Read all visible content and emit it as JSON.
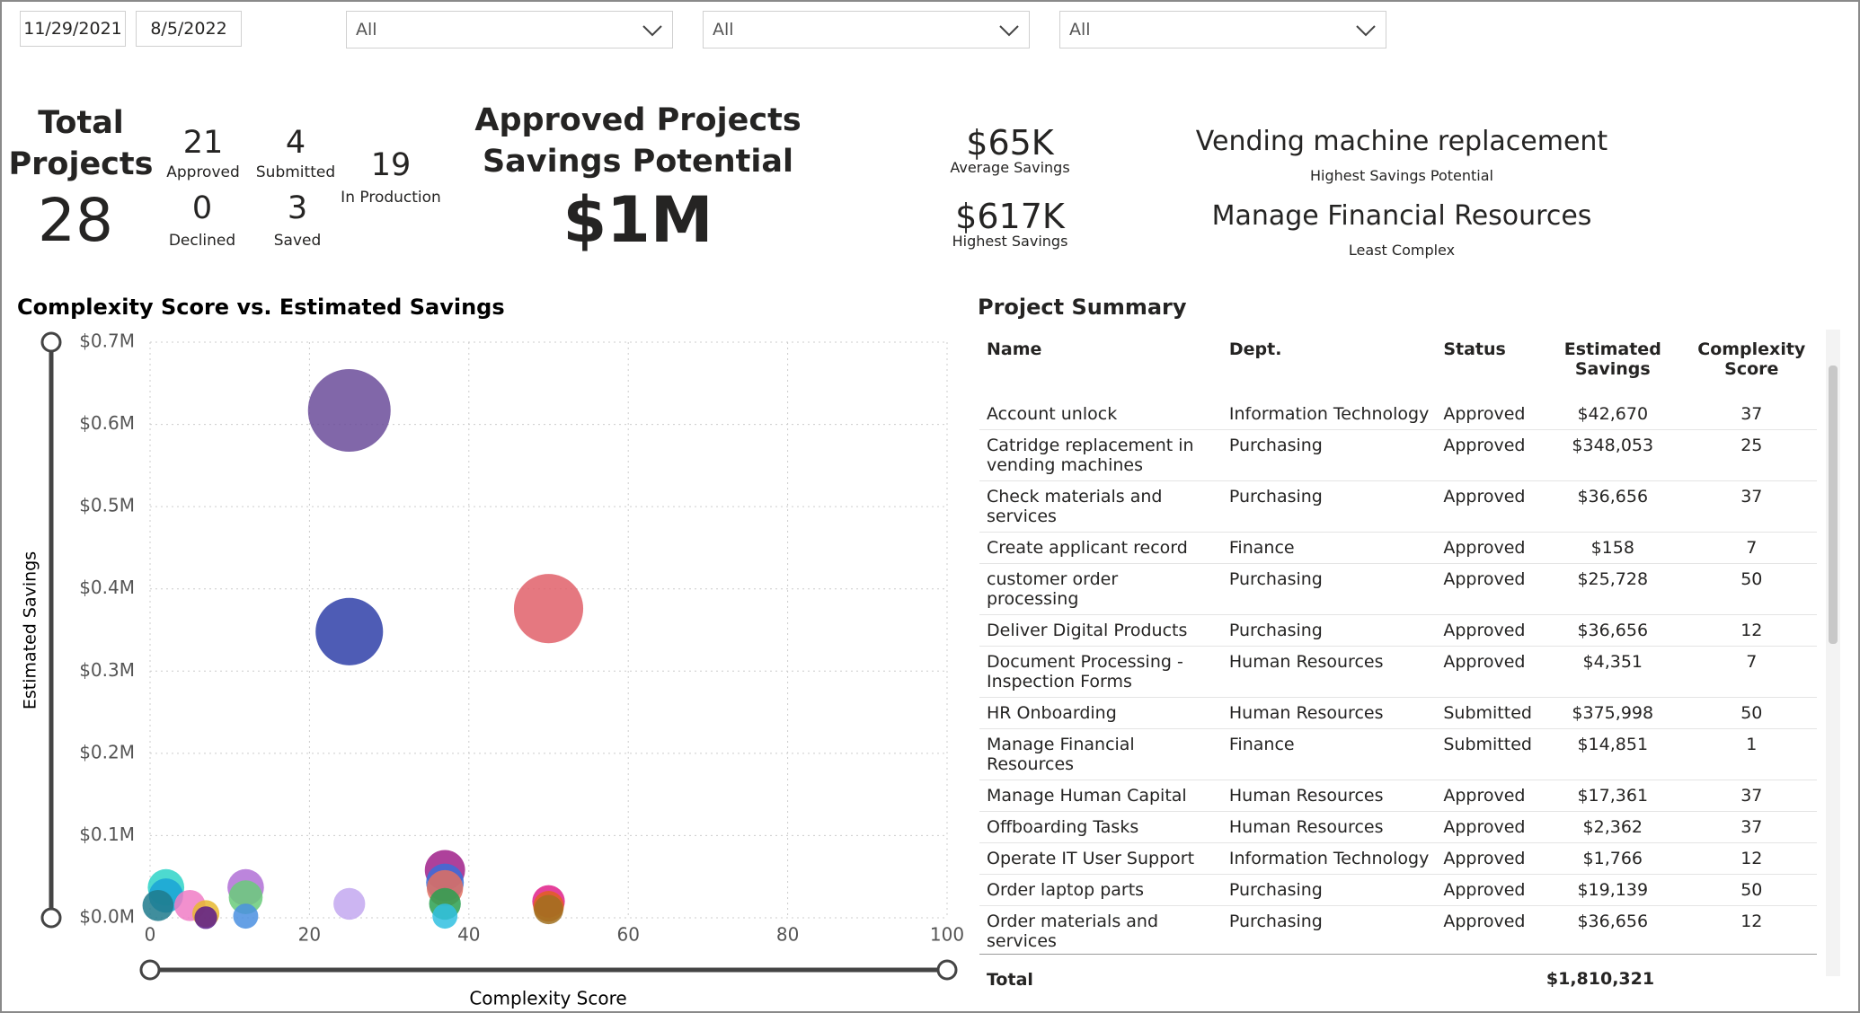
{
  "filters": {
    "start_date": "11/29/2021",
    "end_date": "8/5/2022",
    "dropdowns": [
      "All",
      "All",
      "All"
    ]
  },
  "kpis": {
    "total_label": "Total Projects",
    "total_value": "28",
    "approved": {
      "value": "21",
      "label": "Approved"
    },
    "submitted": {
      "value": "4",
      "label": "Submitted"
    },
    "declined": {
      "value": "0",
      "label": "Declined"
    },
    "saved": {
      "value": "3",
      "label": "Saved"
    },
    "in_production": {
      "value": "19",
      "label": "In Production"
    },
    "savings_title_1": "Approved Projects",
    "savings_title_2": "Savings Potential",
    "savings_value": "$1M",
    "average": {
      "value": "$65K",
      "label": "Average Savings"
    },
    "highest": {
      "value": "$617K",
      "label": "Highest Savings"
    },
    "top_project": {
      "value": "Vending machine replacement",
      "label": "Highest Savings Potential"
    },
    "least_complex": {
      "value": "Manage Financial Resources",
      "label": "Least Complex"
    }
  },
  "chart_data": {
    "type": "scatter",
    "title": "Complexity Score vs. Estimated Savings",
    "x_label": "Complexity Score",
    "y_label": "Estimated Savings",
    "x": [
      25,
      25,
      50,
      2,
      2,
      1,
      5,
      7,
      7,
      12,
      12,
      12,
      25,
      37,
      37,
      37,
      37,
      37,
      50,
      50,
      50
    ],
    "values": [
      0.617,
      0.348,
      0.376,
      0.037,
      0.027,
      0.015,
      0.015,
      0.005,
      0.0002,
      0.037,
      0.025,
      0.002,
      0.017,
      0.058,
      0.043,
      0.036,
      0.017,
      0.002,
      0.02,
      0.014,
      0.01
    ],
    "colors": [
      "#6b4c9a",
      "#2f3fa8",
      "#e0606a",
      "#2ed3c8",
      "#1aa3d6",
      "#1f7a8c",
      "#f07cc6",
      "#e8b830",
      "#5a1a8a",
      "#b070d6",
      "#6acb7a",
      "#4a8fe0",
      "#c3a8f0",
      "#a0208a",
      "#3b6ed8",
      "#e07060",
      "#2aa050",
      "#30c0e0",
      "#e0208a",
      "#e06020",
      "#a07020"
    ],
    "xlim": [
      0,
      100
    ],
    "xticks": [
      0,
      20,
      40,
      60,
      80,
      100
    ],
    "ylim": [
      0,
      0.7
    ],
    "yticks": [
      {
        "value": 0,
        "label": "$0.0M"
      },
      {
        "value": 0.1,
        "label": "$0.1M"
      },
      {
        "value": 0.2,
        "label": "$0.2M"
      },
      {
        "value": 0.3,
        "label": "$0.3M"
      },
      {
        "value": 0.4,
        "label": "$0.4M"
      },
      {
        "value": 0.5,
        "label": "$0.5M"
      },
      {
        "value": 0.6,
        "label": "$0.6M"
      },
      {
        "value": 0.7,
        "label": "$0.7M"
      }
    ],
    "grid": true
  },
  "table": {
    "title": "Project Summary",
    "columns": [
      "Name",
      "Dept.",
      "Status",
      "Estimated Savings",
      "Complexity Score"
    ],
    "rows": [
      [
        "Account unlock",
        "Information Technology",
        "Approved",
        "$42,670",
        37
      ],
      [
        "Catridge replacement in vending machines",
        "Purchasing",
        "Approved",
        "$348,053",
        25
      ],
      [
        "Check materials and services",
        "Purchasing",
        "Approved",
        "$36,656",
        37
      ],
      [
        "Create applicant record",
        "Finance",
        "Approved",
        "$158",
        7
      ],
      [
        "customer order processing",
        "Purchasing",
        "Approved",
        "$25,728",
        50
      ],
      [
        "Deliver Digital Products",
        "Purchasing",
        "Approved",
        "$36,656",
        12
      ],
      [
        "Document Processing - Inspection Forms",
        "Human Resources",
        "Approved",
        "$4,351",
        7
      ],
      [
        "HR Onboarding",
        "Human Resources",
        "Submitted",
        "$375,998",
        50
      ],
      [
        "Manage Financial Resources",
        "Finance",
        "Submitted",
        "$14,851",
        1
      ],
      [
        "Manage Human Capital",
        "Human Resources",
        "Approved",
        "$17,361",
        37
      ],
      [
        "Offboarding Tasks",
        "Human Resources",
        "Approved",
        "$2,362",
        37
      ],
      [
        "Operate IT User Support",
        "Information Technology",
        "Approved",
        "$1,766",
        12
      ],
      [
        "Order laptop parts",
        "Purchasing",
        "Approved",
        "$19,139",
        50
      ],
      [
        "Order materials and services",
        "Purchasing",
        "Approved",
        "$36,656",
        12
      ]
    ],
    "total_label": "Total",
    "total_value": "$1,810,321"
  }
}
